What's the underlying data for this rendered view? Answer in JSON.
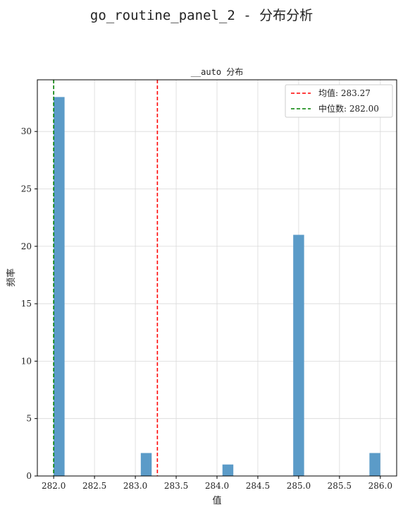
{
  "figure": {
    "suptitle": "go_routine_panel_2 - 分布分析"
  },
  "chart_data": {
    "type": "bar",
    "title": "__auto 分布",
    "xlabel": "值",
    "ylabel": "频率",
    "xlim": [
      281.8,
      286.2
    ],
    "ylim": [
      0,
      34.5
    ],
    "xticks": [
      "282.0",
      "282.5",
      "283.0",
      "283.5",
      "284.0",
      "284.5",
      "285.0",
      "285.5",
      "286.0"
    ],
    "yticks": [
      "0",
      "5",
      "10",
      "15",
      "20",
      "25",
      "30"
    ],
    "bin_width": 0.1333,
    "bars": [
      {
        "x": 282.0,
        "value": 33
      },
      {
        "x": 283.0667,
        "value": 2
      },
      {
        "x": 284.0667,
        "value": 1
      },
      {
        "x": 284.9333,
        "value": 21
      },
      {
        "x": 285.8667,
        "value": 2
      }
    ],
    "bar_color": "#5b9bc8",
    "grid": true,
    "legend_position": "top-right",
    "reference_lines": [
      {
        "label": "均值: 283.27",
        "x": 283.27,
        "color": "#ff0000",
        "style": "dashed"
      },
      {
        "label": "中位数: 282.00",
        "x": 282.0,
        "color": "#008000",
        "style": "dashed"
      }
    ]
  }
}
